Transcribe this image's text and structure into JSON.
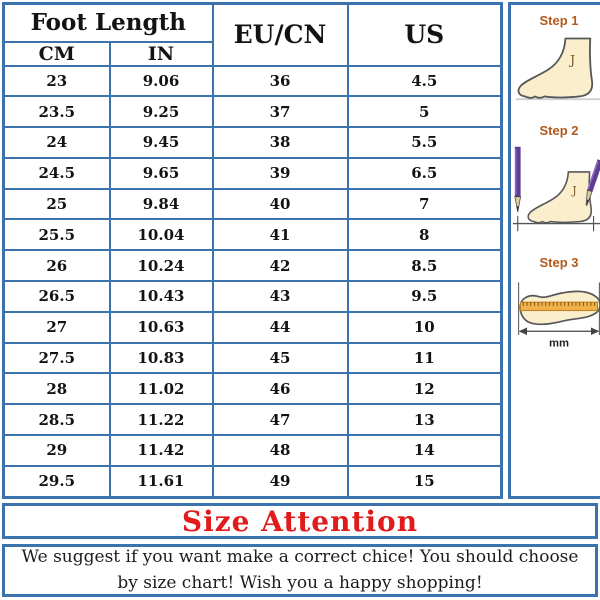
{
  "table": {
    "headers": {
      "foot_length": "Foot Length",
      "cm": "CM",
      "in": "IN",
      "eu_cn": "EU/CN",
      "us": "US"
    },
    "rows": [
      {
        "cm": "23",
        "in": "9.06",
        "eu": "36",
        "us": "4.5"
      },
      {
        "cm": "23.5",
        "in": "9.25",
        "eu": "37",
        "us": "5"
      },
      {
        "cm": "24",
        "in": "9.45",
        "eu": "38",
        "us": "5.5"
      },
      {
        "cm": "24.5",
        "in": "9.65",
        "eu": "39",
        "us": "6.5"
      },
      {
        "cm": "25",
        "in": "9.84",
        "eu": "40",
        "us": "7"
      },
      {
        "cm": "25.5",
        "in": "10.04",
        "eu": "41",
        "us": "8"
      },
      {
        "cm": "26",
        "in": "10.24",
        "eu": "42",
        "us": "8.5"
      },
      {
        "cm": "26.5",
        "in": "10.43",
        "eu": "43",
        "us": "9.5"
      },
      {
        "cm": "27",
        "in": "10.63",
        "eu": "44",
        "us": "10"
      },
      {
        "cm": "27.5",
        "in": "10.83",
        "eu": "45",
        "us": "11"
      },
      {
        "cm": "28",
        "in": "11.02",
        "eu": "46",
        "us": "12"
      },
      {
        "cm": "28.5",
        "in": "11.22",
        "eu": "47",
        "us": "13"
      },
      {
        "cm": "29",
        "in": "11.42",
        "eu": "48",
        "us": "14"
      },
      {
        "cm": "29.5",
        "in": "11.61",
        "eu": "49",
        "us": "15"
      }
    ]
  },
  "steps": {
    "step1": {
      "label": "Step 1"
    },
    "step2": {
      "label": "Step 2"
    },
    "step3": {
      "label": "Step 3",
      "unit": "mm"
    }
  },
  "attention": {
    "title": "Size Attention"
  },
  "message": {
    "text": "We suggest if you want make a correct chice! You should choose by size chart! Wish you a happy shopping!"
  },
  "colors": {
    "border": "#3a73ad",
    "attention_red": "#e01b1b",
    "step_label": "#b15a1d",
    "foot_fill": "#fbeecd",
    "pencil_purple": "#5e3c92",
    "ruler_orange": "#f0b14a"
  }
}
